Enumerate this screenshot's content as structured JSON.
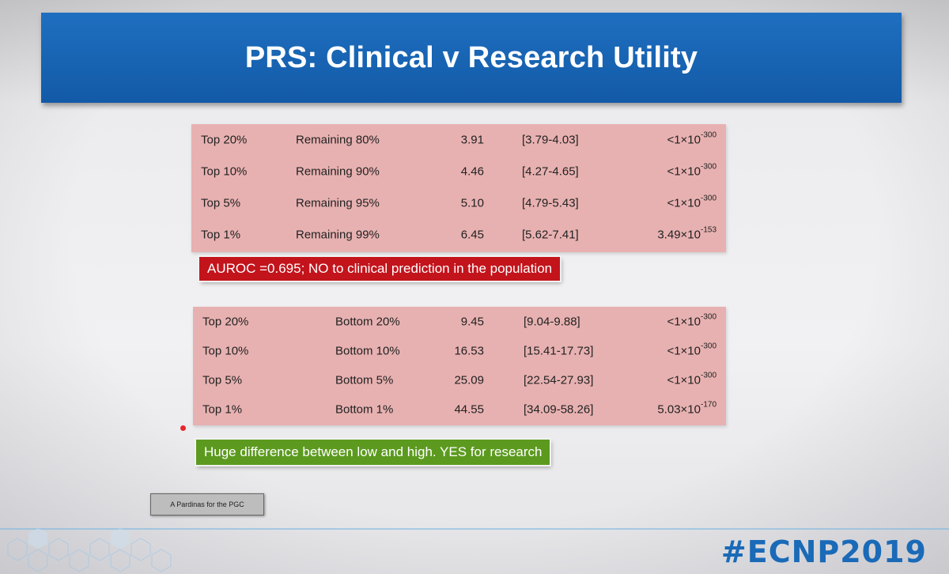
{
  "title": "PRS: Clinical v Research Utility",
  "table1": {
    "rows": [
      {
        "group": "Top 20%",
        "comparison": "Remaining 80%",
        "or": "3.91",
        "ci": "[3.79-4.03]",
        "p_base": "<1×10",
        "p_exp": "-300"
      },
      {
        "group": "Top 10%",
        "comparison": "Remaining 90%",
        "or": "4.46",
        "ci": "[4.27-4.65]",
        "p_base": "<1×10",
        "p_exp": "-300"
      },
      {
        "group": "Top 5%",
        "comparison": "Remaining 95%",
        "or": "5.10",
        "ci": "[4.79-5.43]",
        "p_base": "<1×10",
        "p_exp": "-300"
      },
      {
        "group": "Top 1%",
        "comparison": "Remaining 99%",
        "or": "6.45",
        "ci": "[5.62-7.41]",
        "p_base": "3.49×10",
        "p_exp": "-153"
      }
    ]
  },
  "callout_red": "AUROC =0.695; NO to clinical prediction in the population",
  "table2": {
    "rows": [
      {
        "group": "Top 20%",
        "comparison": "Bottom 20%",
        "or": "9.45",
        "ci": "[9.04-9.88]",
        "p_base": "<1×10",
        "p_exp": "-300"
      },
      {
        "group": "Top 10%",
        "comparison": "Bottom 10%",
        "or": "16.53",
        "ci": "[15.41-17.73]",
        "p_base": "<1×10",
        "p_exp": "-300"
      },
      {
        "group": "Top 5%",
        "comparison": "Bottom 5%",
        "or": "25.09",
        "ci": "[22.54-27.93]",
        "p_base": "<1×10",
        "p_exp": "-300"
      },
      {
        "group": "Top 1%",
        "comparison": "Bottom 1%",
        "or": "44.55",
        "ci": "[34.09-58.26]",
        "p_base": "5.03×10",
        "p_exp": "-170"
      }
    ]
  },
  "callout_green": "Huge difference between low and high. YES for research",
  "credit": "A Pardinas for the PGC",
  "hashtag": "#ECNP2019",
  "colors": {
    "title_bar": "#125aa7",
    "table_bg": "#e8b1b1",
    "red_callout": "#c3141c",
    "green_callout": "#5c9a1f",
    "hashtag": "#1a6ab8"
  }
}
